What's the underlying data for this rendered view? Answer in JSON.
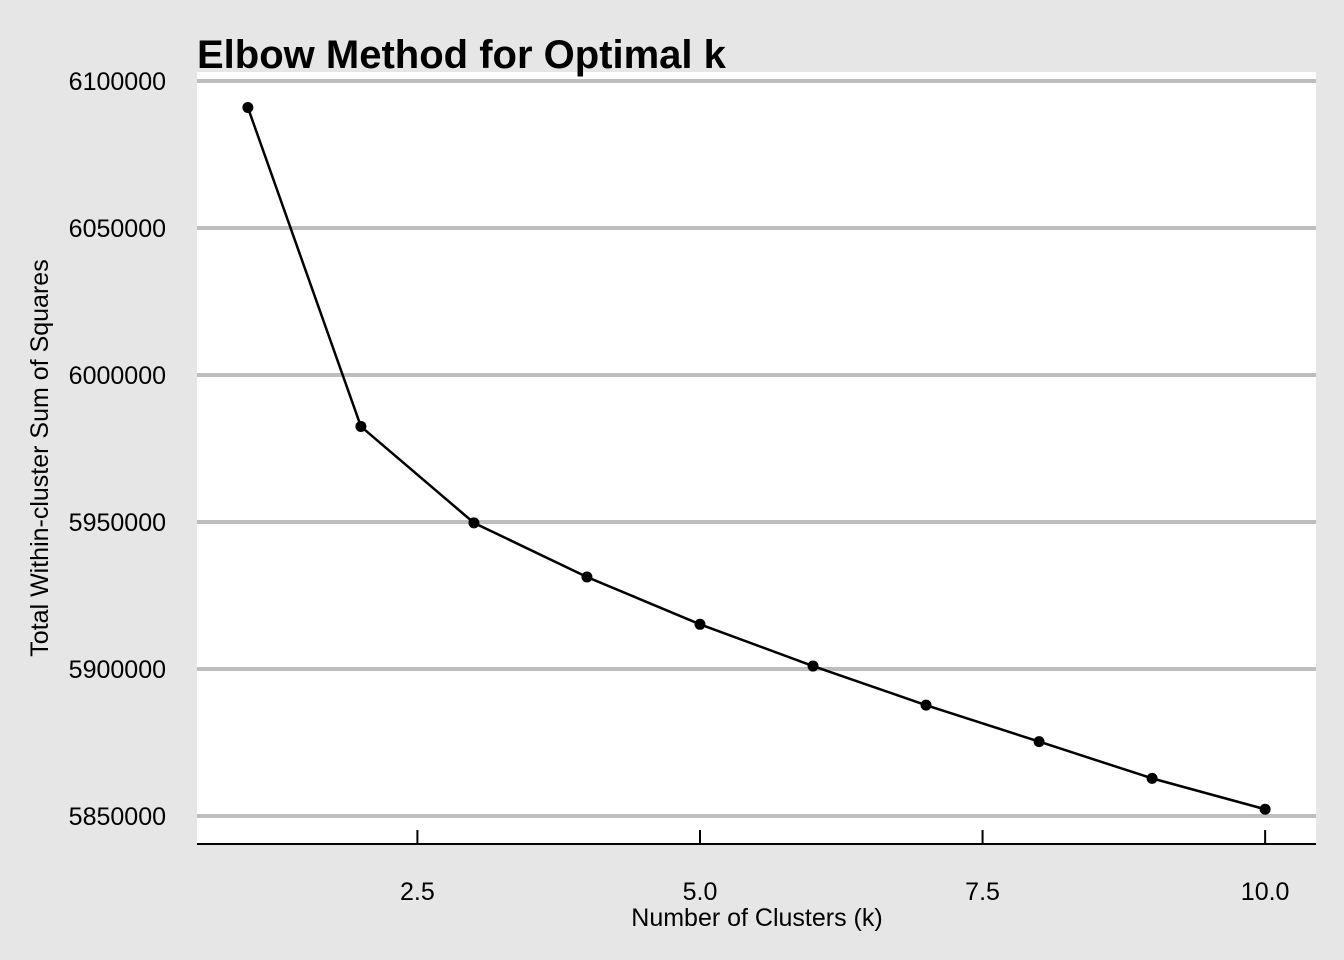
{
  "chart_data": {
    "type": "line",
    "title": "Elbow Method for Optimal k",
    "xlabel": "Number of Clusters (k)",
    "ylabel": "Total Within-cluster Sum of Squares",
    "x": [
      1,
      2,
      3,
      4,
      5,
      6,
      7,
      8,
      9,
      10
    ],
    "series": [
      {
        "values": [
          6091000,
          5982500,
          5949700,
          5931300,
          5915200,
          5901000,
          5887700,
          5875300,
          5862800,
          5852300
        ]
      }
    ],
    "xlim": [
      0.55,
      10.45
    ],
    "ylim": [
      5840000,
      6100000
    ],
    "xticks": [
      2.5,
      5.0,
      7.5,
      10.0
    ],
    "xtick_labels": [
      "2.5",
      "5.0",
      "7.5",
      "10.0"
    ],
    "yticks": [
      5850000,
      5900000,
      5950000,
      6000000,
      6050000,
      6100000
    ],
    "ytick_labels": [
      "5850000",
      "5900000",
      "5950000",
      "6000000",
      "6050000",
      "6100000"
    ],
    "grid": "horizontal",
    "legend": "none",
    "colors": {
      "background": "#e6e6e6",
      "panel": "#ffffff",
      "gridline": "#bebebe",
      "line": "#000000",
      "point": "#000000"
    }
  }
}
